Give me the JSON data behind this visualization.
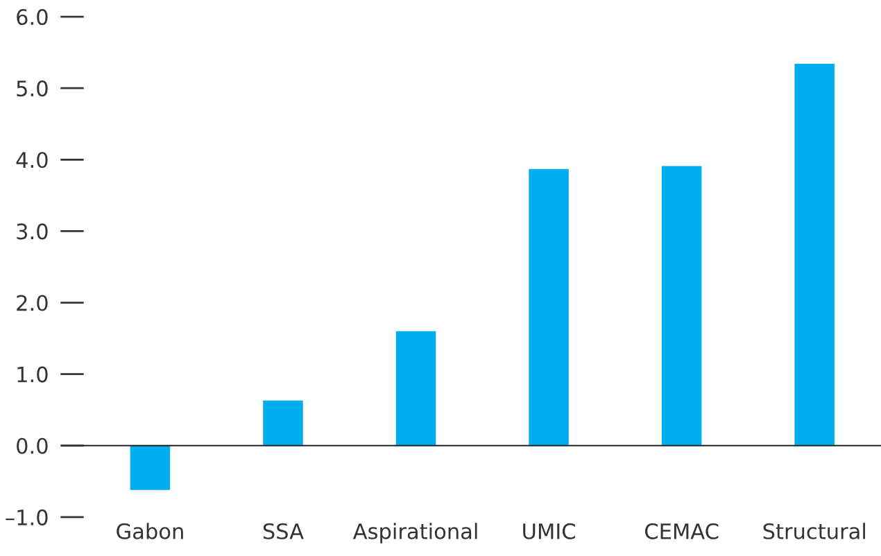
{
  "chart_data": {
    "type": "bar",
    "categories": [
      "Gabon",
      "SSA",
      "Aspirational",
      "UMIC",
      "CEMAC",
      "Structural"
    ],
    "values": [
      -0.62,
      0.63,
      1.6,
      3.87,
      3.91,
      5.34
    ],
    "color": "#00aeef",
    "ylim": [
      -1.0,
      6.0
    ],
    "yticks": [
      {
        "value": -1.0,
        "label": "–1.0"
      },
      {
        "value": 0.0,
        "label": "0.0"
      },
      {
        "value": 1.0,
        "label": "1.0"
      },
      {
        "value": 2.0,
        "label": "2.0"
      },
      {
        "value": 3.0,
        "label": "3.0"
      },
      {
        "value": 4.0,
        "label": "4.0"
      },
      {
        "value": 5.0,
        "label": "5.0"
      },
      {
        "value": 6.0,
        "label": "6.0"
      }
    ],
    "legend": false
  }
}
